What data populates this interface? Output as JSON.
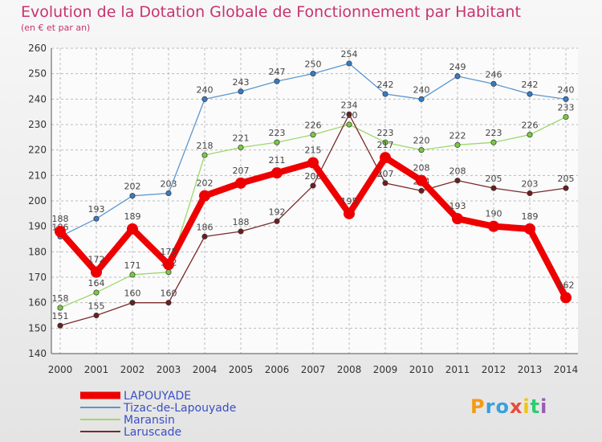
{
  "title": "Evolution de la Dotation Globale de Fonctionnement par Habitant",
  "subtitle": "(en € et par an)",
  "brand": "Proxiti",
  "chart_data": {
    "type": "line",
    "x": [
      2000,
      2001,
      2002,
      2003,
      2004,
      2005,
      2006,
      2007,
      2008,
      2009,
      2010,
      2011,
      2012,
      2013,
      2014
    ],
    "ylim": [
      140,
      260
    ],
    "yticks": [
      140,
      150,
      160,
      170,
      180,
      190,
      200,
      210,
      220,
      230,
      240,
      250,
      260
    ],
    "grid": true,
    "legend_position": "bottom-left",
    "series": [
      {
        "name": "Tizac-de-Lapouyade",
        "color": "#5b97cf",
        "marker": "#3a7bc0",
        "values": [
          186,
          193,
          202,
          203,
          240,
          243,
          247,
          250,
          254,
          242,
          240,
          249,
          246,
          242,
          240
        ]
      },
      {
        "name": "Maransin",
        "color": "#9ed86b",
        "marker": "#7ac943",
        "values": [
          158,
          164,
          171,
          172,
          218,
          221,
          223,
          226,
          230,
          223,
          220,
          222,
          223,
          226,
          233
        ]
      },
      {
        "name": "Laruscade",
        "color": "#7a2a2a",
        "marker": "#6b1f1f",
        "values": [
          151,
          155,
          160,
          160,
          186,
          188,
          192,
          206,
          234,
          207,
          204,
          208,
          205,
          203,
          205
        ]
      },
      {
        "name": "LAPOUYADE",
        "color": "#ee0000",
        "marker": "#ee0000",
        "values": [
          188,
          172,
          189,
          175,
          202,
          207,
          211,
          215,
          195,
          217,
          208,
          193,
          190,
          189,
          162
        ]
      }
    ]
  }
}
